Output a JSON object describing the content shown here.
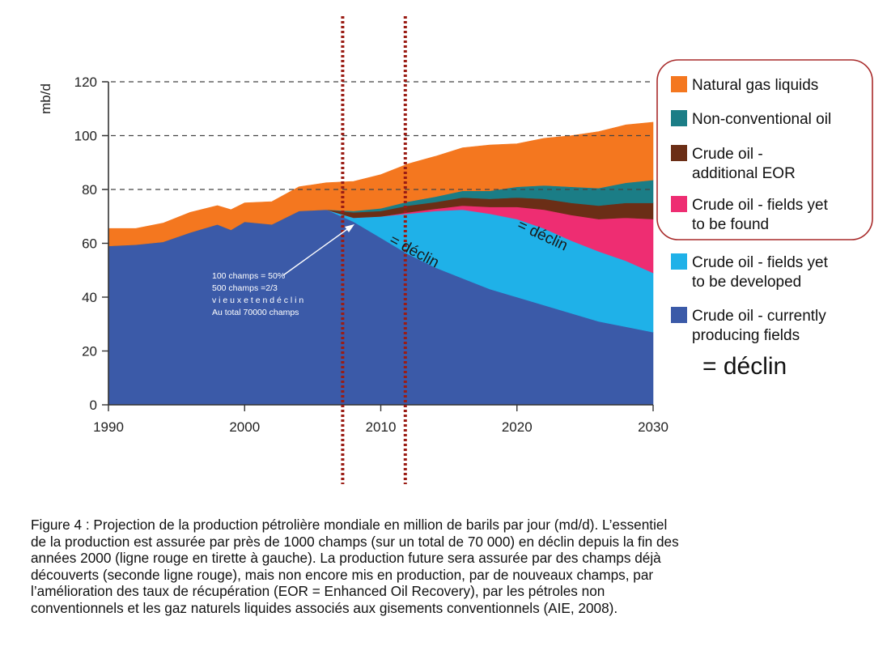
{
  "chart_data": {
    "type": "area",
    "stacked": true,
    "ylabel": "mb/d",
    "xlabel": "",
    "xlim": [
      1990,
      2030
    ],
    "ylim": [
      0,
      120
    ],
    "x_ticks": [
      "1990",
      "2000",
      "2010",
      "2020",
      "2030"
    ],
    "y_ticks": [
      "0",
      "20",
      "40",
      "60",
      "80",
      "100",
      "120"
    ],
    "grid_y_values": [
      80,
      100,
      120
    ],
    "x": [
      1990,
      1992,
      1994,
      1996,
      1998,
      1999,
      2000,
      2002,
      2004,
      2006,
      2008,
      2010,
      2012,
      2014,
      2016,
      2018,
      2020,
      2022,
      2024,
      2026,
      2028,
      2030
    ],
    "series": [
      {
        "name": "Crude oil - currently producing fields",
        "color": "#3b5aa8",
        "values": [
          59,
          59.5,
          60.5,
          64,
          67,
          65,
          68,
          67,
          72,
          72.5,
          68,
          62,
          56,
          51,
          47,
          43,
          40,
          37,
          34,
          31,
          29,
          27
        ]
      },
      {
        "name": "Crude oil - fields yet to be developed",
        "color": "#1fb1e8",
        "values": [
          0,
          0,
          0,
          0,
          0,
          0,
          0,
          0,
          0,
          0,
          1.5,
          8,
          15,
          21,
          25.5,
          28,
          29,
          28.5,
          27,
          26,
          24.5,
          22
        ]
      },
      {
        "name": "Crude oil - fields yet to be found",
        "color": "#ee2d72",
        "values": [
          0,
          0,
          0,
          0,
          0,
          0,
          0,
          0,
          0,
          0,
          0,
          0,
          0.5,
          0.8,
          1.5,
          2.5,
          4.5,
          7,
          9.5,
          12,
          16,
          20
        ]
      },
      {
        "name": "Crude oil - additional EOR",
        "color": "#6b2e16",
        "values": [
          0,
          0,
          0,
          0,
          0,
          0,
          0,
          0,
          0,
          0,
          2,
          2,
          2.5,
          2.5,
          3,
          3,
          3.5,
          4,
          4.5,
          5,
          5.5,
          6
        ]
      },
      {
        "name": "Non-conventional oil",
        "color": "#1b7d86",
        "values": [
          0,
          0,
          0,
          0,
          0,
          0,
          0,
          0,
          0,
          0,
          0.5,
          1,
          1.5,
          2,
          2.5,
          3,
          4,
          5,
          6,
          6.5,
          7.5,
          8.5
        ]
      },
      {
        "name": "Natural gas liquids",
        "color": "#f4771f",
        "values": [
          6.5,
          6,
          7,
          7.5,
          7,
          7.5,
          7,
          8.5,
          9,
          10,
          11,
          12.5,
          14,
          15,
          16,
          17,
          16,
          17.5,
          19,
          21,
          21.5,
          21.5
        ]
      }
    ],
    "legend_position": "right",
    "vertical_markers": [
      2007.2,
      2011.8
    ],
    "texts": {
      "declin_right": "= déclin",
      "declin_mid": "= déclin",
      "declin_upper": "= déclin",
      "annotation_lines": [
        "100 champs = 50%",
        "500 champs =2/3",
        "v i e u x e t e n d é c l i n",
        "Au total 70000 champs"
      ]
    }
  },
  "caption": {
    "lines": [
      "Figure 4 : Projection de la production pétrolière mondiale en million de barils par jour (md/d). L’essentiel",
      "de la production est assurée par près de 1000 champs (sur un total de 70 000) en déclin depuis la fin des",
      "années 2000 (ligne rouge en tirette à gauche). La production future sera assurée par des champs déjà",
      "découverts (seconde ligne rouge), mais non encore mis en production, par de nouveaux champs, par",
      "l’amélioration des taux de récupération (EOR = Enhanced Oil Recovery), par les pétroles non",
      "conventionnels et les gaz naturels liquides associés aux gisements conventionnels (AIE, 2008)."
    ]
  },
  "colors": {
    "marker_line": "#9a1c14",
    "legend_border": "#a82a2a",
    "grid": "#444444"
  }
}
